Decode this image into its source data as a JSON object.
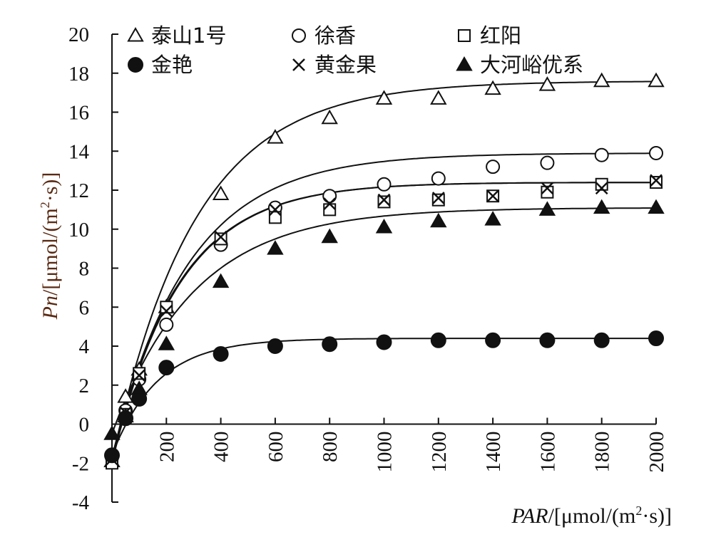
{
  "chart_data": {
    "type": "line",
    "xlabel": {
      "italic": "PAR",
      "rest": "/[μmol/(m",
      "sup": "2",
      "tail": "·s)]"
    },
    "ylabel": {
      "italic": "Pn",
      "rest": "/[μmol/(m",
      "sup": "2",
      "tail": "·s)]"
    },
    "xlim": [
      0,
      2000
    ],
    "ylim": [
      -4,
      20
    ],
    "xticks": [
      200,
      400,
      600,
      800,
      1000,
      1200,
      1400,
      1600,
      1800,
      2000
    ],
    "yticks": [
      -4,
      -2,
      0,
      2,
      4,
      6,
      8,
      10,
      12,
      14,
      16,
      18,
      20
    ],
    "legend_position": "top",
    "grid": false,
    "x": [
      0,
      50,
      100,
      200,
      400,
      600,
      800,
      1000,
      1200,
      1400,
      1600,
      1800,
      2000
    ],
    "series": [
      {
        "name": "泰山1号",
        "marker": "triangle-open",
        "values": [
          -1.9,
          1.4,
          2.8,
          6.0,
          11.8,
          14.7,
          15.7,
          16.7,
          16.7,
          17.2,
          17.4,
          17.6,
          17.6
        ],
        "fit": {
          "pmax": 17.6,
          "k": 0.0033,
          "y0": -1.9
        }
      },
      {
        "name": "徐香",
        "marker": "circle-open",
        "values": [
          -1.7,
          0.7,
          2.3,
          5.1,
          9.2,
          11.1,
          11.7,
          12.3,
          12.6,
          13.2,
          13.4,
          13.8,
          13.9
        ],
        "fit": {
          "pmax": 13.9,
          "k": 0.0036,
          "y0": -1.7
        }
      },
      {
        "name": "红阳",
        "marker": "square-open",
        "values": [
          -2.0,
          0.5,
          2.6,
          6.0,
          9.5,
          10.6,
          11.0,
          11.4,
          11.5,
          11.7,
          11.9,
          12.3,
          12.4
        ],
        "fit": {
          "pmax": 12.4,
          "k": 0.0041,
          "y0": -2.0
        }
      },
      {
        "name": "金艳",
        "marker": "circle-filled",
        "values": [
          -1.6,
          0.3,
          1.3,
          2.9,
          3.6,
          4.0,
          4.1,
          4.2,
          4.3,
          4.3,
          4.3,
          4.3,
          4.4
        ],
        "fit": {
          "pmax": 4.4,
          "k": 0.006,
          "y0": -1.6
        }
      },
      {
        "name": "黄金果",
        "marker": "cross",
        "values": [
          -1.8,
          0.6,
          2.5,
          5.8,
          9.6,
          11.0,
          11.3,
          11.5,
          11.6,
          11.7,
          12.1,
          12.1,
          12.5
        ],
        "fit": {
          "pmax": 12.4,
          "k": 0.0041,
          "y0": -1.8
        }
      },
      {
        "name": "大河峪优系",
        "marker": "triangle-filled",
        "values": [
          -0.5,
          0.4,
          1.8,
          4.1,
          7.3,
          9.0,
          9.6,
          10.1,
          10.4,
          10.5,
          11.0,
          11.1,
          11.1
        ],
        "fit": {
          "pmax": 11.1,
          "k": 0.0033,
          "y0": -0.5
        }
      }
    ]
  }
}
